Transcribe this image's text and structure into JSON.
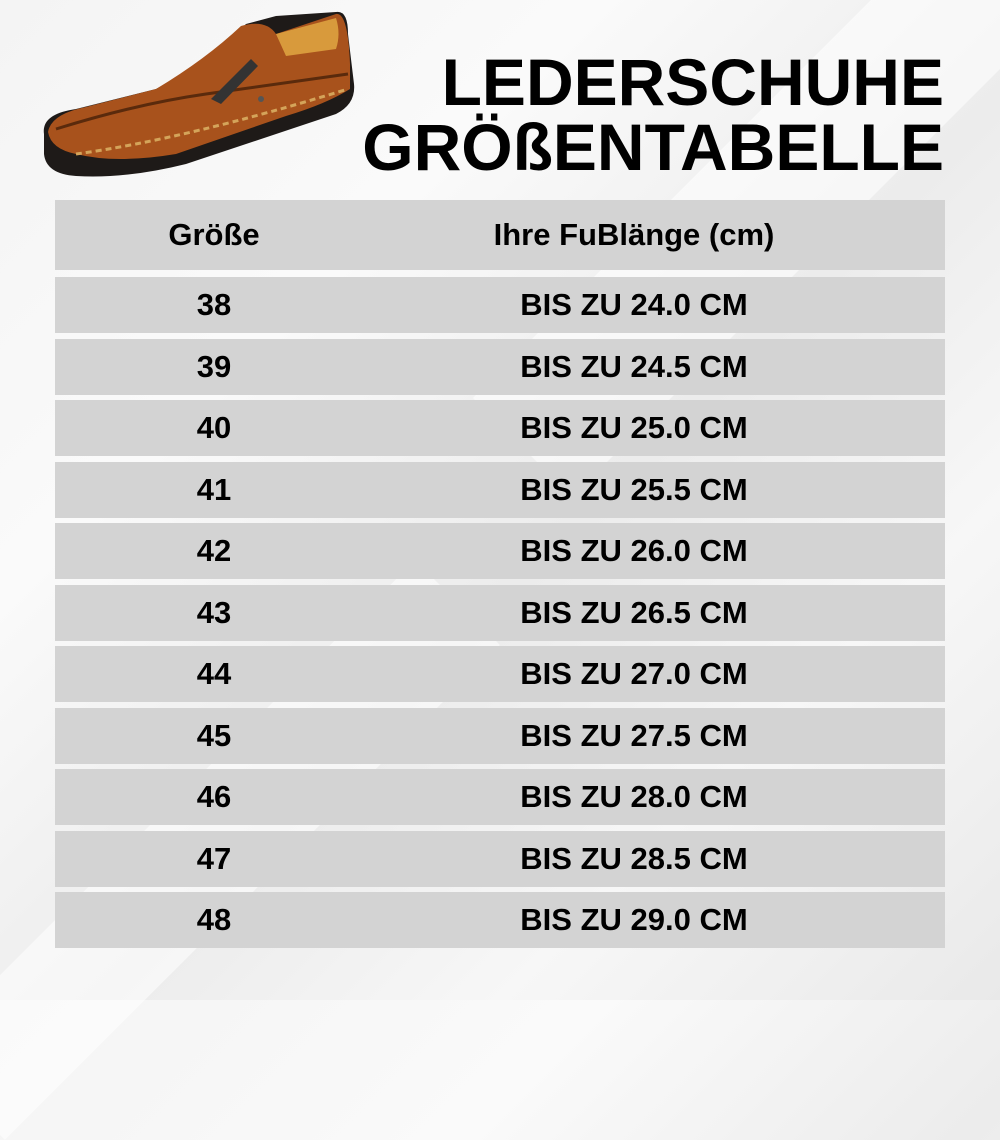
{
  "title": {
    "line1": "LEDERSCHUHE",
    "line2": "GRÖßENTABELLE"
  },
  "product_image": "brown-leather-slip-on-shoe-with-zipper",
  "table": {
    "headers": [
      "Größe",
      "Ihre FuBlänge (cm)"
    ],
    "rows": [
      {
        "size": "38",
        "length": "BIS ZU 24.0 CM"
      },
      {
        "size": "39",
        "length": "BIS ZU 24.5 CM"
      },
      {
        "size": "40",
        "length": "BIS ZU 25.0 CM"
      },
      {
        "size": "41",
        "length": "BIS ZU 25.5 CM"
      },
      {
        "size": "42",
        "length": "BIS ZU 26.0 CM"
      },
      {
        "size": "43",
        "length": "BIS ZU 26.5 CM"
      },
      {
        "size": "44",
        "length": "BIS ZU 27.0 CM"
      },
      {
        "size": "45",
        "length": "BIS ZU 27.5 CM"
      },
      {
        "size": "46",
        "length": "BIS ZU 28.0 CM"
      },
      {
        "size": "47",
        "length": "BIS ZU 28.5 CM"
      },
      {
        "size": "48",
        "length": "BIS ZU 29.0 CM"
      }
    ]
  },
  "colors": {
    "row_bg": "#d3d3d3",
    "text": "#000000",
    "leather": "#a8521c",
    "sole": "#1e1a18"
  }
}
